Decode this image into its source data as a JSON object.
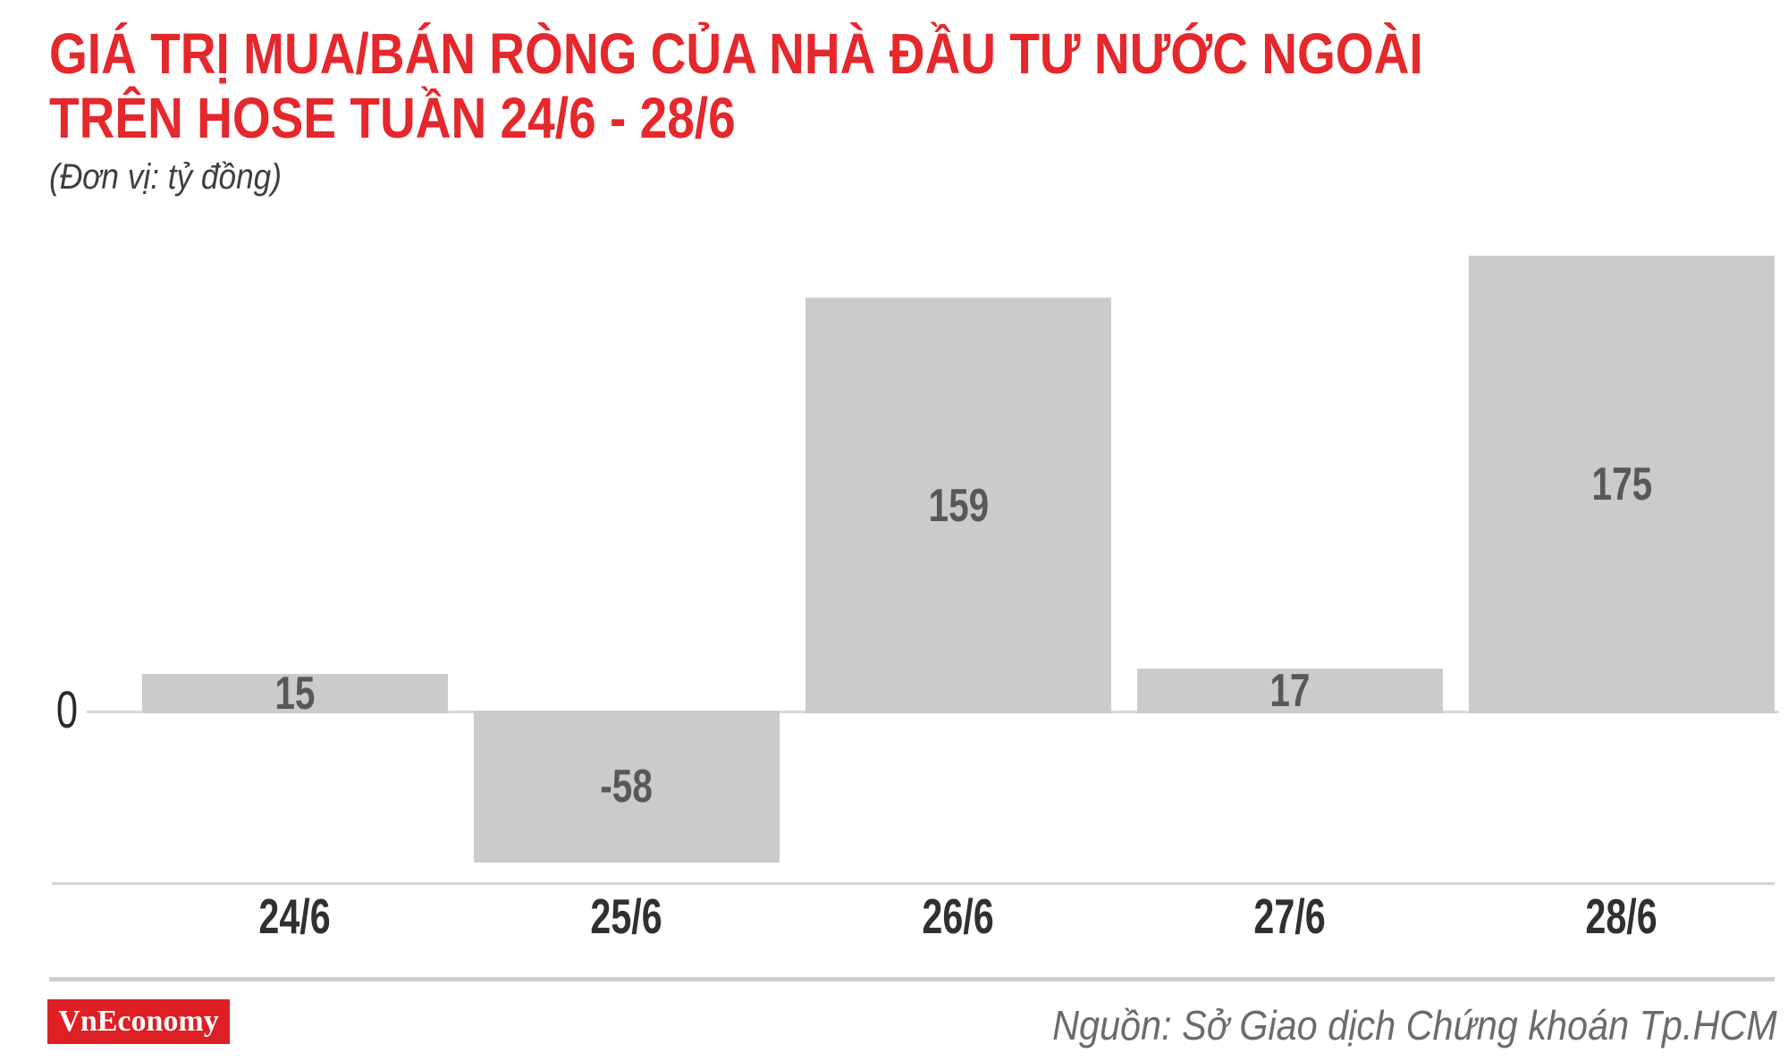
{
  "header": {
    "title_line1": "GIÁ TRỊ MUA/BÁN RÒNG CỦA NHÀ ĐẦU TƯ NƯỚC NGOÀI",
    "title_line2": "TRÊN HOSE TUẦN 24/6 - 28/6",
    "subtitle": "(Đơn vị: tỷ đồng)",
    "title_color": "#e4282c"
  },
  "chart_data": {
    "type": "bar",
    "categories": [
      "24/6",
      "25/6",
      "26/6",
      "27/6",
      "28/6"
    ],
    "values": [
      15,
      -58,
      159,
      17,
      175
    ],
    "title": "GIÁ TRỊ MUA/BÁN RÒNG CỦA NHÀ ĐẦU TƯ NƯỚC NGOÀI TRÊN HOSE TUẦN 24/6 - 28/6",
    "unit": "tỷ đồng",
    "xlabel": "",
    "ylabel": "",
    "ylim": [
      -70,
      185
    ],
    "zero_label": "0",
    "grid": false,
    "legend": false,
    "bar_color": "#cccbcb",
    "value_label_color": "#58585a",
    "axis_line_color": "#d9d9d9"
  },
  "footer": {
    "logo_text": "VnEconomy",
    "logo_bg": "#de1f24",
    "source": "Nguồn: Sở Giao dịch Chứng khoán Tp.HCM"
  }
}
